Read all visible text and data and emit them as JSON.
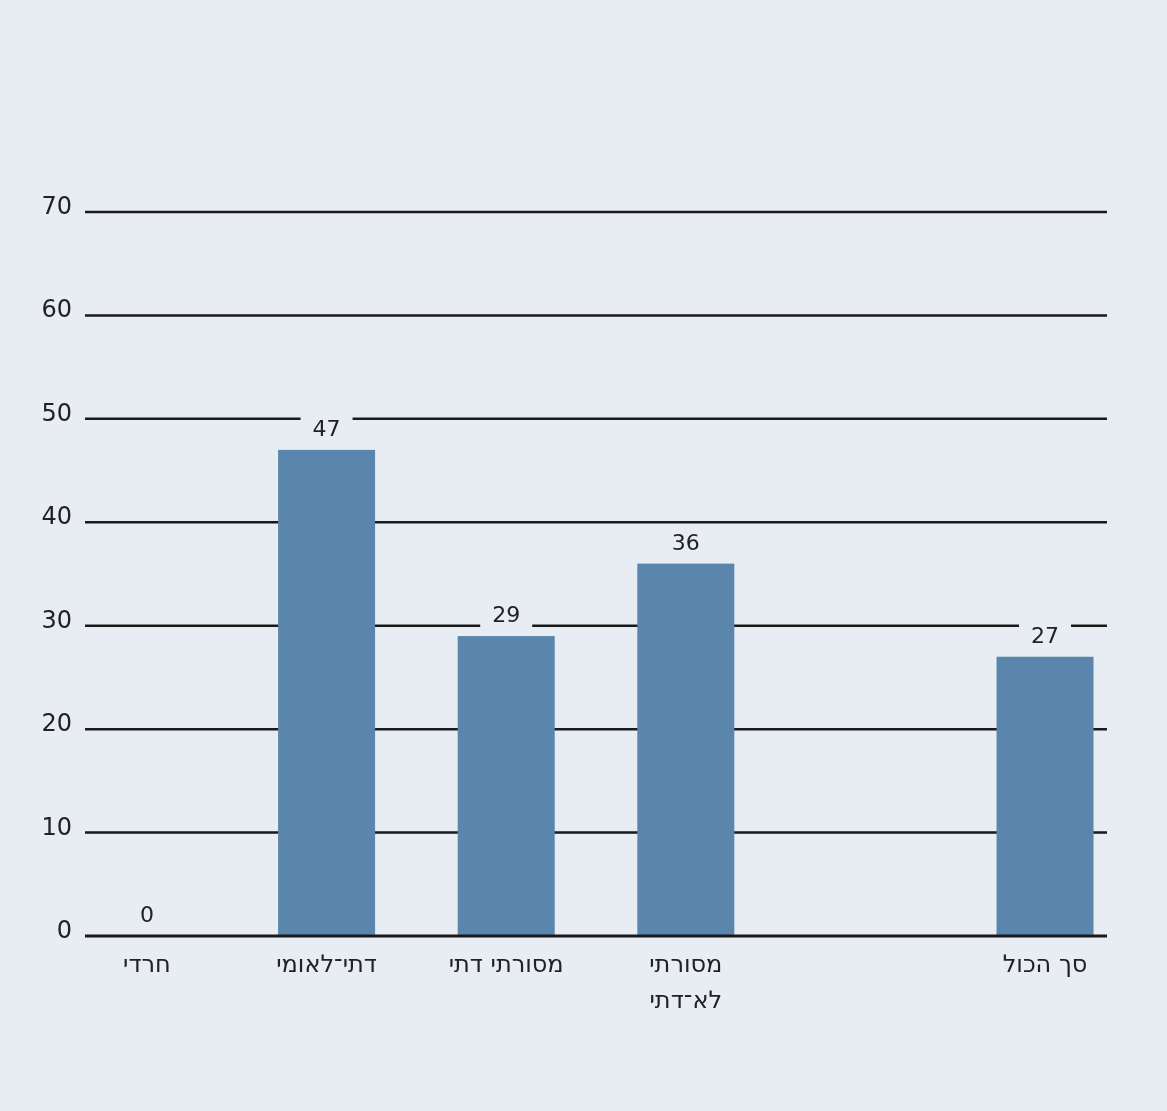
{
  "chart_data": {
    "type": "bar",
    "categories": [
      "חרדי",
      "דתי־לאומי",
      "מסורתי דתי",
      "מסורתי לא־דתי",
      null,
      "סך הכול"
    ],
    "values": [
      0,
      47,
      29,
      36,
      null,
      27
    ],
    "color": "#5a86ae",
    "ylim": [
      0,
      70
    ],
    "yticks": [
      0,
      10,
      20,
      30,
      40,
      50,
      60,
      70
    ],
    "grid": "y",
    "data_labels": true
  }
}
